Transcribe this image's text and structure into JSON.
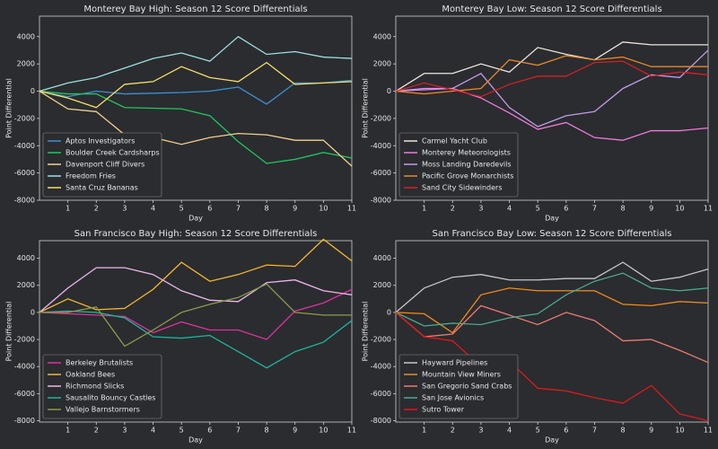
{
  "chart_data": [
    {
      "type": "line",
      "title": "Monterey Bay High: Season 12 Score Differentials",
      "x_label": "Day",
      "y_label": "Point Differential",
      "x": [
        0,
        1,
        2,
        3,
        4,
        5,
        6,
        7,
        8,
        9,
        10,
        11
      ],
      "xlim": [
        0,
        11
      ],
      "xticks": [
        1,
        2,
        3,
        4,
        5,
        6,
        7,
        8,
        9,
        10,
        11
      ],
      "ylim": [
        -8000,
        5500
      ],
      "yticks": [
        -8000,
        -6000,
        -4000,
        -2000,
        0,
        2000,
        4000
      ],
      "legend": "lower left",
      "series": [
        {
          "name": "Aptos Investigators",
          "color": "#3d8fd1",
          "values": [
            0,
            -400,
            0,
            -200,
            -150,
            -100,
            0,
            300,
            -950,
            600,
            600,
            800
          ]
        },
        {
          "name": "Boulder Creek Cardsharps",
          "color": "#22c55e",
          "values": [
            0,
            -200,
            -200,
            -1200,
            -1250,
            -1300,
            -1800,
            -3700,
            -5300,
            -5000,
            -4500,
            -4900
          ]
        },
        {
          "name": "Davenport Cliff Divers",
          "color": "#f5d08a",
          "values": [
            0,
            -1300,
            -1500,
            -3200,
            -3400,
            -3900,
            -3400,
            -3100,
            -3200,
            -3600,
            -3600,
            -5500
          ]
        },
        {
          "name": "Freedom Fries",
          "color": "#9de0e0",
          "values": [
            0,
            600,
            1000,
            1700,
            2400,
            2800,
            2200,
            4000,
            2700,
            2900,
            2500,
            2400
          ]
        },
        {
          "name": "Santa Cruz Bananas",
          "color": "#f7e067",
          "values": [
            0,
            -500,
            -1200,
            500,
            700,
            1800,
            1000,
            700,
            2100,
            500,
            600,
            700
          ]
        }
      ]
    },
    {
      "type": "line",
      "title": "Monterey Bay Low: Season 12 Score Differentials",
      "x_label": "Day",
      "y_label": "Point Differential",
      "x": [
        0,
        1,
        2,
        3,
        4,
        5,
        6,
        7,
        8,
        9,
        10,
        11
      ],
      "xlim": [
        0,
        11
      ],
      "xticks": [
        1,
        2,
        3,
        4,
        5,
        6,
        7,
        8,
        9,
        10,
        11
      ],
      "ylim": [
        -8000,
        5500
      ],
      "yticks": [
        -8000,
        -6000,
        -4000,
        -2000,
        0,
        2000,
        4000
      ],
      "legend": "lower left",
      "series": [
        {
          "name": "Carmel Yacht Club",
          "color": "#ece6dc",
          "values": [
            0,
            1300,
            1300,
            2000,
            1400,
            3200,
            2700,
            2300,
            3600,
            3400,
            3400,
            3400
          ]
        },
        {
          "name": "Monterey Meteorologists",
          "color": "#f07ad8",
          "values": [
            0,
            100,
            200,
            -500,
            -1600,
            -2800,
            -2300,
            -3400,
            -3600,
            -2900,
            -2900,
            -2700
          ]
        },
        {
          "name": "Moss Landing Daredevils",
          "color": "#c39be8",
          "values": [
            0,
            200,
            200,
            1300,
            -1200,
            -2600,
            -1800,
            -1500,
            200,
            1200,
            1000,
            3000
          ]
        },
        {
          "name": "Pacific Grove Monarchists",
          "color": "#e8862a",
          "values": [
            0,
            -200,
            0,
            200,
            2300,
            1900,
            2600,
            2300,
            2500,
            1800,
            1800,
            1800
          ]
        },
        {
          "name": "Sand City Sidewinders",
          "color": "#d62020",
          "values": [
            0,
            600,
            100,
            -400,
            500,
            1100,
            1100,
            2100,
            2200,
            1100,
            1400,
            1200
          ]
        }
      ]
    },
    {
      "type": "line",
      "title": "San Francisco Bay High: Season 12 Score Differentials",
      "x_label": "Day",
      "y_label": "Point Differential",
      "x": [
        0,
        1,
        2,
        3,
        4,
        5,
        6,
        7,
        8,
        9,
        10,
        11
      ],
      "xlim": [
        0,
        11
      ],
      "xticks": [
        1,
        2,
        3,
        4,
        5,
        6,
        7,
        8,
        9,
        10,
        11
      ],
      "ylim": [
        -8100,
        5300
      ],
      "yticks": [
        -8000,
        -6000,
        -4000,
        -2000,
        0,
        2000,
        4000
      ],
      "legend": "lower left",
      "series": [
        {
          "name": "Berkeley Brutalists",
          "color": "#e0309e",
          "values": [
            0,
            -100,
            -200,
            -300,
            -1500,
            -700,
            -1300,
            -1300,
            -2000,
            100,
            700,
            1700
          ]
        },
        {
          "name": "Oakland Bees",
          "color": "#f5b731",
          "values": [
            0,
            1000,
            200,
            300,
            1700,
            3700,
            2300,
            2800,
            3500,
            3400,
            5400,
            3800
          ]
        },
        {
          "name": "Richmond Slicks",
          "color": "#efb6e8",
          "values": [
            0,
            1800,
            3300,
            3300,
            2800,
            1600,
            900,
            800,
            2200,
            2400,
            1600,
            1300
          ]
        },
        {
          "name": "Sausalito Bouncy Castles",
          "color": "#1fb59a",
          "values": [
            0,
            100,
            0,
            -400,
            -1800,
            -1900,
            -1700,
            -2900,
            -4100,
            -2900,
            -2200,
            -600
          ]
        },
        {
          "name": "Vallejo Barnstormers",
          "color": "#8c9a4a",
          "values": [
            0,
            0,
            400,
            -2500,
            -1300,
            0,
            600,
            1100,
            2100,
            0,
            -200,
            -200
          ]
        }
      ]
    },
    {
      "type": "line",
      "title": "San Francisco Bay Low: Season 12 Score Differentials",
      "x_label": "Day",
      "y_label": "Point Differential",
      "x": [
        0,
        1,
        2,
        3,
        4,
        5,
        6,
        7,
        8,
        9,
        10,
        11
      ],
      "xlim": [
        0,
        11
      ],
      "xticks": [
        1,
        2,
        3,
        4,
        5,
        6,
        7,
        8,
        9,
        10,
        11
      ],
      "ylim": [
        -8100,
        5300
      ],
      "yticks": [
        -8000,
        -6000,
        -4000,
        -2000,
        0,
        2000,
        4000
      ],
      "legend": "lower left",
      "series": [
        {
          "name": "Hayward Pipelines",
          "color": "#c8c8c8",
          "values": [
            0,
            1800,
            2600,
            2800,
            2400,
            2400,
            2500,
            2500,
            3700,
            2300,
            2600,
            3200
          ]
        },
        {
          "name": "Mountain View Miners",
          "color": "#f08a1c",
          "values": [
            0,
            -100,
            -1500,
            1300,
            1800,
            1600,
            1600,
            1600,
            600,
            500,
            800,
            700
          ]
        },
        {
          "name": "San Gregorio Sand Crabs",
          "color": "#f07a70",
          "values": [
            0,
            -1800,
            -1600,
            500,
            -200,
            -900,
            0,
            -600,
            -2100,
            -2000,
            -2800,
            -3700
          ]
        },
        {
          "name": "San Jose Avionics",
          "color": "#4fa890",
          "values": [
            0,
            -1000,
            -800,
            -900,
            -400,
            -100,
            1300,
            2300,
            2900,
            1800,
            1600,
            1800
          ]
        },
        {
          "name": "Sutro Tower",
          "color": "#e01818",
          "values": [
            0,
            -1800,
            -2100,
            -4000,
            -3600,
            -5600,
            -5800,
            -6300,
            -6700,
            -5400,
            -7500,
            -8000
          ]
        }
      ]
    }
  ]
}
